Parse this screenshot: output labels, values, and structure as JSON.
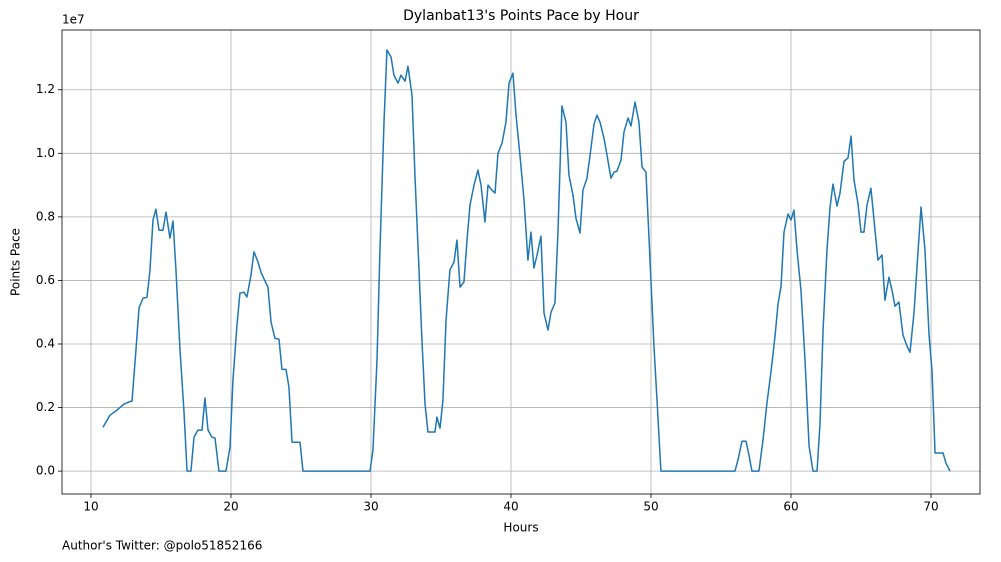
{
  "chart_data": {
    "type": "line",
    "title": "Dylanbat13's Points Pace by Hour",
    "x_label": "Hours",
    "y_label": "Points Pace",
    "y_offset_label": "1e7",
    "footnote": "Author's Twitter: @polo51852166",
    "grid": true,
    "xlim": [
      7.93,
      73.5
    ],
    "ylim": [
      -0.072,
      1.388
    ],
    "xticks": [
      10,
      20,
      30,
      40,
      50,
      60,
      70
    ],
    "yticks": [
      {
        "value": 0,
        "label": "0.0"
      },
      0.2,
      0.4,
      0.6,
      0.8,
      {
        "value": 1,
        "label": "1.0"
      },
      1.2
    ],
    "x": [
      10.86,
      11.36,
      11.86,
      12.36,
      12.86,
      12.93,
      13.21,
      13.43,
      13.71,
      14.0,
      14.21,
      14.43,
      14.64,
      14.86,
      15.14,
      15.36,
      15.64,
      15.86,
      16.07,
      16.36,
      16.64,
      16.86,
      17.14,
      17.36,
      17.64,
      17.93,
      18.14,
      18.36,
      18.64,
      18.86,
      19.14,
      19.64,
      19.93,
      20.14,
      20.43,
      20.64,
      20.93,
      21.14,
      21.43,
      21.64,
      21.93,
      22.14,
      22.43,
      22.64,
      22.86,
      23.14,
      23.43,
      23.64,
      23.93,
      24.14,
      24.36,
      24.64,
      24.93,
      25.14,
      29.93,
      30.14,
      30.43,
      30.64,
      30.93,
      31.14,
      31.43,
      31.64,
      31.93,
      32.14,
      32.43,
      32.64,
      32.93,
      33.14,
      33.43,
      33.64,
      33.86,
      34.07,
      34.36,
      34.57,
      34.71,
      34.93,
      35.14,
      35.36,
      35.64,
      35.93,
      36.14,
      36.36,
      36.64,
      36.86,
      37.07,
      37.36,
      37.64,
      37.86,
      38.14,
      38.36,
      38.64,
      38.86,
      39.07,
      39.36,
      39.64,
      39.86,
      40.14,
      40.36,
      40.64,
      40.93,
      41.21,
      41.43,
      41.64,
      41.86,
      42.14,
      42.36,
      42.64,
      42.86,
      43.14,
      43.36,
      43.64,
      43.93,
      44.14,
      44.43,
      44.64,
      44.93,
      45.14,
      45.43,
      45.64,
      45.93,
      46.14,
      46.36,
      46.64,
      46.86,
      47.14,
      47.36,
      47.57,
      47.86,
      48.07,
      48.36,
      48.57,
      48.86,
      49.14,
      49.36,
      49.64,
      49.93,
      50.21,
      50.43,
      50.71,
      56.0,
      56.21,
      56.5,
      56.79,
      57.0,
      57.21,
      57.71,
      58.0,
      58.29,
      58.57,
      58.86,
      59.07,
      59.29,
      59.5,
      59.79,
      60.0,
      60.21,
      60.43,
      60.71,
      61.0,
      61.29,
      61.57,
      61.86,
      62.07,
      62.29,
      62.57,
      62.79,
      63.0,
      63.29,
      63.5,
      63.79,
      64.07,
      64.29,
      64.5,
      64.79,
      65.0,
      65.21,
      65.43,
      65.71,
      65.93,
      66.21,
      66.5,
      66.71,
      67.0,
      67.21,
      67.43,
      67.71,
      68.0,
      68.29,
      68.5,
      68.79,
      69.07,
      69.29,
      69.57,
      69.86,
      70.07,
      70.29,
      70.64,
      70.86,
      71.07,
      71.36
    ],
    "series": [
      {
        "name": "Points Pace",
        "color": "#1f77b4",
        "values": [
          0.138,
          0.176,
          0.192,
          0.211,
          0.22,
          0.22,
          0.38,
          0.513,
          0.544,
          0.547,
          0.63,
          0.79,
          0.824,
          0.758,
          0.758,
          0.815,
          0.733,
          0.787,
          0.633,
          0.38,
          0.19,
          0,
          0,
          0.107,
          0.129,
          0.129,
          0.23,
          0.129,
          0.107,
          0.104,
          0,
          0,
          0.075,
          0.286,
          0.46,
          0.56,
          0.563,
          0.548,
          0.617,
          0.69,
          0.658,
          0.626,
          0.598,
          0.579,
          0.469,
          0.418,
          0.415,
          0.32,
          0.32,
          0.264,
          0.091,
          0.091,
          0.091,
          0,
          0,
          0.066,
          0.35,
          0.695,
          1.098,
          1.325,
          1.303,
          1.246,
          1.221,
          1.246,
          1.227,
          1.274,
          1.183,
          0.931,
          0.633,
          0.412,
          0.211,
          0.123,
          0.123,
          0.123,
          0.17,
          0.135,
          0.223,
          0.475,
          0.633,
          0.658,
          0.727,
          0.579,
          0.595,
          0.727,
          0.837,
          0.9,
          0.947,
          0.9,
          0.784,
          0.9,
          0.884,
          0.875,
          1.0,
          1.032,
          1.098,
          1.221,
          1.252,
          1.12,
          0.994,
          0.853,
          0.664,
          0.752,
          0.639,
          0.68,
          0.739,
          0.497,
          0.444,
          0.5,
          0.529,
          0.758,
          1.149,
          1.098,
          0.931,
          0.868,
          0.796,
          0.749,
          0.884,
          0.922,
          0.991,
          1.092,
          1.12,
          1.098,
          1.048,
          0.994,
          0.922,
          0.941,
          0.944,
          0.979,
          1.067,
          1.111,
          1.086,
          1.161,
          1.098,
          0.957,
          0.941,
          0.664,
          0.396,
          0.223,
          0,
          0,
          0.035,
          0.094,
          0.094,
          0.05,
          0,
          0,
          0.098,
          0.217,
          0.312,
          0.425,
          0.525,
          0.582,
          0.752,
          0.809,
          0.79,
          0.821,
          0.695,
          0.57,
          0.35,
          0.079,
          0,
          0,
          0.148,
          0.444,
          0.695,
          0.831,
          0.903,
          0.834,
          0.875,
          0.975,
          0.985,
          1.054,
          0.916,
          0.84,
          0.752,
          0.752,
          0.837,
          0.89,
          0.79,
          0.664,
          0.68,
          0.538,
          0.61,
          0.57,
          0.519,
          0.532,
          0.428,
          0.393,
          0.374,
          0.5,
          0.689,
          0.831,
          0.695,
          0.428,
          0.318,
          0.057,
          0.057,
          0.057,
          0.025,
          0
        ]
      }
    ]
  }
}
